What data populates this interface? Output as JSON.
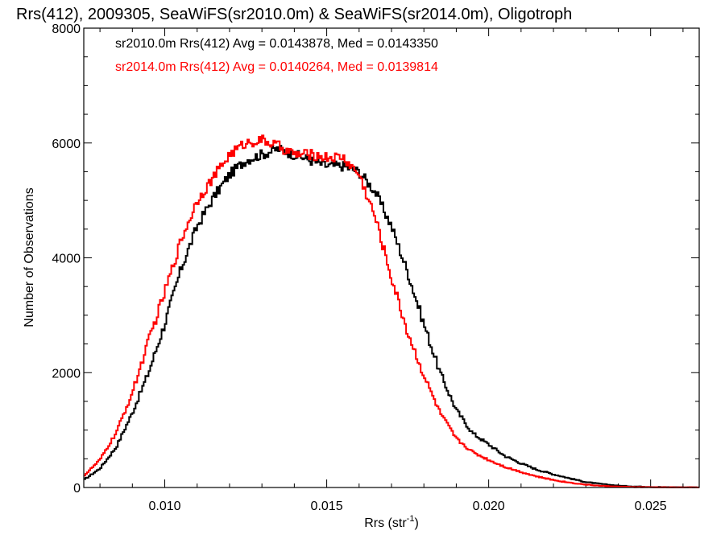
{
  "chart_data": {
    "type": "line",
    "title": "Rrs(412), 2009305, SeaWiFS(sr2010.0m) & SeaWiFS(sr2014.0m), Oligotroph",
    "xlabel_main": "Rrs (str",
    "xlabel_sup": "-1",
    "xlabel_close": ")",
    "ylabel": "Number of Observations",
    "xlim": [
      0.0075,
      0.0265
    ],
    "ylim": [
      0,
      8000
    ],
    "xticks": [
      0.01,
      0.015,
      0.02,
      0.025
    ],
    "xtick_labels": [
      "0.010",
      "0.015",
      "0.020",
      "0.025"
    ],
    "yticks": [
      0,
      2000,
      4000,
      6000,
      8000
    ],
    "ytick_labels": [
      "0",
      "2000",
      "4000",
      "6000",
      "8000"
    ],
    "grid": false,
    "legend_position": "top-left",
    "series": [
      {
        "name": "sr2010.0m Rrs(412) Avg = 0.0143878, Med = 0.0143350",
        "color": "#000000",
        "x": [
          0.0075,
          0.008,
          0.0085,
          0.009,
          0.0095,
          0.01,
          0.0105,
          0.011,
          0.0115,
          0.012,
          0.0125,
          0.013,
          0.0135,
          0.014,
          0.0145,
          0.015,
          0.0155,
          0.016,
          0.0165,
          0.017,
          0.0175,
          0.018,
          0.0185,
          0.019,
          0.0195,
          0.02,
          0.0205,
          0.021,
          0.0215,
          0.022,
          0.0225,
          0.023,
          0.0235,
          0.024,
          0.0245,
          0.025,
          0.0255,
          0.026,
          0.0265
        ],
        "y": [
          130,
          330,
          700,
          1300,
          2000,
          2850,
          3800,
          4550,
          5050,
          5450,
          5700,
          5800,
          5900,
          5800,
          5700,
          5600,
          5600,
          5500,
          5150,
          4550,
          3750,
          2850,
          2000,
          1350,
          950,
          750,
          550,
          420,
          310,
          230,
          160,
          95,
          60,
          32,
          18,
          10,
          6,
          3,
          2
        ]
      },
      {
        "name": "sr2014.0m Rrs(412) Avg = 0.0140264, Med = 0.0139814",
        "color": "#ff0000",
        "x": [
          0.0075,
          0.008,
          0.0085,
          0.009,
          0.0095,
          0.01,
          0.0105,
          0.011,
          0.0115,
          0.012,
          0.0125,
          0.013,
          0.0135,
          0.014,
          0.0145,
          0.015,
          0.0155,
          0.016,
          0.0165,
          0.017,
          0.0175,
          0.018,
          0.0185,
          0.019,
          0.0195,
          0.02,
          0.0205,
          0.021,
          0.0215,
          0.022,
          0.0225,
          0.023,
          0.0235,
          0.024,
          0.0245,
          0.025,
          0.0255,
          0.026,
          0.0265
        ],
        "y": [
          200,
          480,
          950,
          1650,
          2550,
          3400,
          4300,
          5000,
          5400,
          5800,
          6000,
          6050,
          5950,
          5800,
          5800,
          5750,
          5750,
          5450,
          4700,
          3650,
          2700,
          1950,
          1300,
          850,
          620,
          480,
          360,
          270,
          190,
          130,
          85,
          50,
          28,
          15,
          8,
          5,
          3,
          2,
          1
        ]
      }
    ]
  }
}
